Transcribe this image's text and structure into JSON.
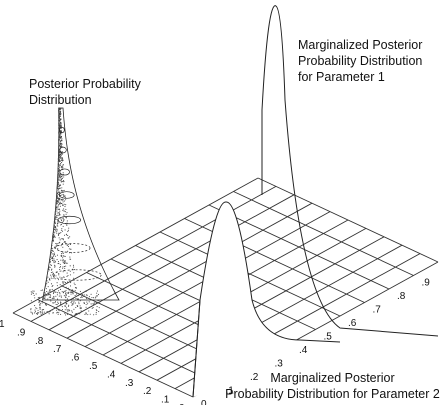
{
  "labels": {
    "posterior": "Posterior Probability\nDistribution",
    "marginal_param1": "Marginalized Posterior\nProbability Distribution\nfor Parameter 1",
    "marginal_param2": "Marginalized Posterior\nProbability Distribution for Parameter 2"
  },
  "axis_left_ticks": [
    "1",
    ".9",
    ".8",
    ".7",
    ".6",
    ".5",
    ".4",
    ".3",
    ".2",
    ".1",
    "0"
  ],
  "axis_right_ticks": [
    "0",
    ".1",
    ".2",
    ".3",
    ".4",
    ".5",
    ".6",
    ".7",
    ".8",
    ".9"
  ],
  "colors": {
    "line": "#222222",
    "grid": "#333333",
    "dots": "#444444"
  }
}
